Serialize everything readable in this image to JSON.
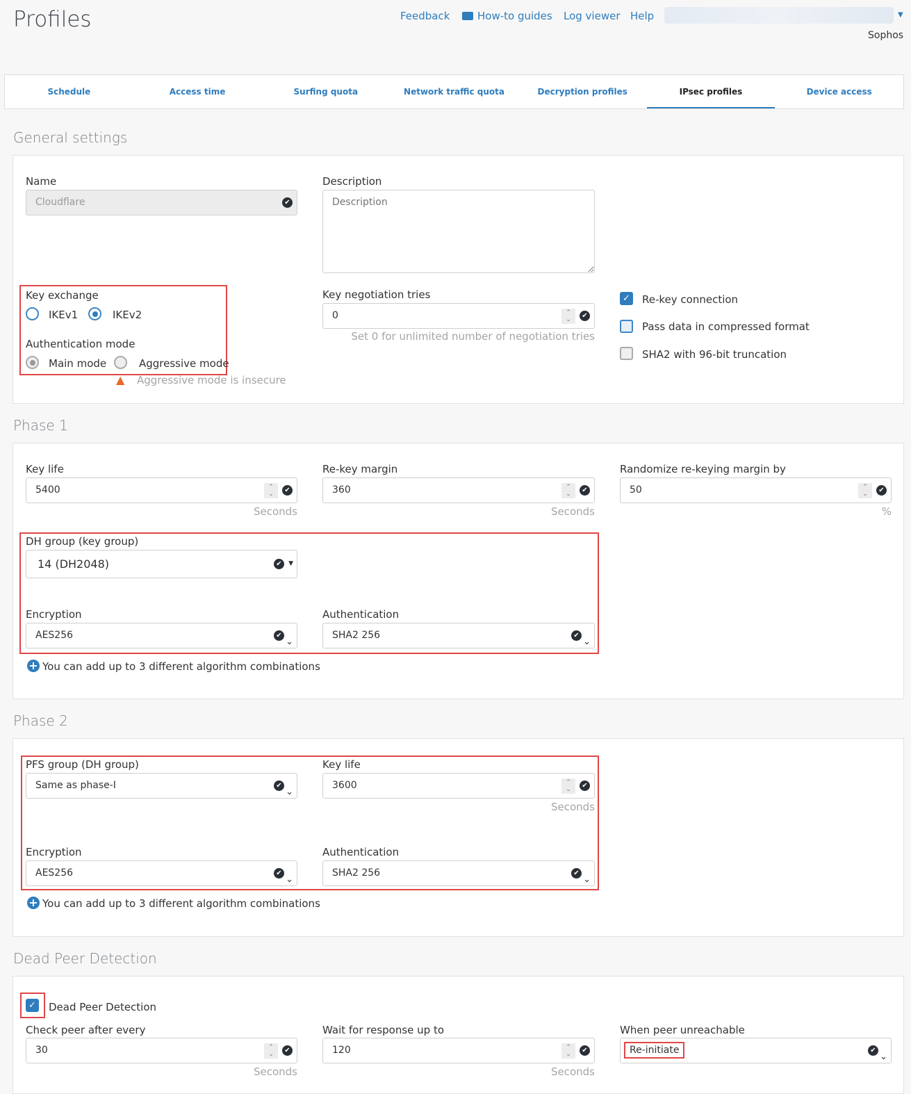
{
  "header": {
    "title": "Profiles",
    "links": [
      "Feedback",
      "How-to guides",
      "Log viewer",
      "Help"
    ],
    "account_label": "Sophos"
  },
  "tabs": [
    {
      "label": "Schedule"
    },
    {
      "label": "Access time"
    },
    {
      "label": "Surfing quota"
    },
    {
      "label": "Network traffic quota"
    },
    {
      "label": "Decryption profiles"
    },
    {
      "label": "IPsec profiles",
      "active": true
    },
    {
      "label": "Device access"
    }
  ],
  "general": {
    "title": "General settings",
    "name_label": "Name",
    "name_value": "Cloudflare",
    "description_label": "Description",
    "description_placeholder": "Description",
    "key_exchange_label": "Key exchange",
    "ikev1": "IKEv1",
    "ikev2": "IKEv2",
    "key_exchange_selected": "IKEv2",
    "auth_mode_label": "Authentication mode",
    "main_mode": "Main mode",
    "aggressive_mode": "Aggressive mode",
    "auth_mode_selected": "Main mode",
    "warning": "Aggressive mode is insecure",
    "key_tries_label": "Key negotiation tries",
    "key_tries_value": "0",
    "key_tries_hint": "Set 0 for unlimited number of negotiation tries",
    "rekey_label": "Re-key connection",
    "rekey_checked": true,
    "compress_label": "Pass data in compressed format",
    "compress_checked": true,
    "sha2_label": "SHA2 with 96-bit truncation",
    "sha2_checked": false
  },
  "phase1": {
    "title": "Phase 1",
    "key_life_label": "Key life",
    "key_life_value": "5400",
    "unit_seconds": "Seconds",
    "rekey_margin_label": "Re-key margin",
    "rekey_margin_value": "360",
    "randomize_label": "Randomize re-keying margin by",
    "randomize_value": "50",
    "unit_percent": "%",
    "dh_label": "DH group (key group)",
    "dh_value": "14 (DH2048)",
    "encryption_label": "Encryption",
    "encryption_value": "AES256",
    "auth_label": "Authentication",
    "auth_value": "SHA2 256",
    "add_text": "You can add up to 3 different algorithm combinations"
  },
  "phase2": {
    "title": "Phase 2",
    "pfs_label": "PFS group (DH group)",
    "pfs_value": "Same as phase-I",
    "key_life_label": "Key life",
    "key_life_value": "3600",
    "unit_seconds": "Seconds",
    "encryption_label": "Encryption",
    "encryption_value": "AES256",
    "auth_label": "Authentication",
    "auth_value": "SHA2 256",
    "add_text": "You can add up to 3 different algorithm combinations"
  },
  "dpd": {
    "title": "Dead Peer Detection",
    "checkbox_label": "Dead Peer Detection",
    "checked": true,
    "check_peer_label": "Check peer after every",
    "check_peer_value": "30",
    "wait_label": "Wait for response up to",
    "wait_value": "120",
    "unit_seconds": "Seconds",
    "unreachable_label": "When peer unreachable",
    "unreachable_value": "Re-initiate"
  }
}
